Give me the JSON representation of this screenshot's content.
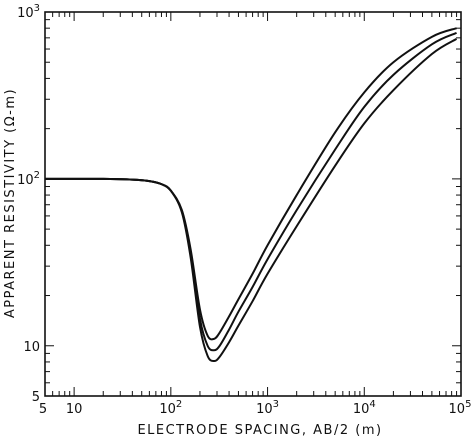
{
  "chart_data": {
    "type": "line",
    "title": "",
    "xlabel": "ELECTRODE SPACING, AB/2 (m)",
    "ylabel": "APPARENT RESISTIVITY (Ω-m)",
    "xscale": "log",
    "yscale": "log",
    "xlim": [
      5,
      100000
    ],
    "ylim": [
      5,
      1000
    ],
    "grid": false,
    "legend": "none",
    "x_tick_labels": [
      {
        "value": 5,
        "label": "5"
      },
      {
        "value": 10,
        "label": "10"
      },
      {
        "value": 100,
        "label": "10",
        "exp": "2"
      },
      {
        "value": 1000,
        "label": "10",
        "exp": "3"
      },
      {
        "value": 10000,
        "label": "10",
        "exp": "4"
      },
      {
        "value": 100000,
        "label": "10",
        "exp": "5"
      }
    ],
    "y_tick_labels": [
      {
        "value": 5,
        "label": "5"
      },
      {
        "value": 10,
        "label": "10"
      },
      {
        "value": 100,
        "label": "10",
        "exp": "2"
      },
      {
        "value": 1000,
        "label": "10",
        "exp": "3"
      }
    ],
    "series": [
      {
        "x": [
          5,
          10,
          20,
          40,
          60,
          80,
          100,
          130,
          160,
          200,
          240,
          280,
          320,
          400,
          500,
          700,
          1000,
          2000,
          5000,
          10000,
          20000,
          50000,
          90000
        ],
        "y": [
          100,
          100,
          100,
          99,
          97,
          93,
          85,
          65,
          38,
          16.5,
          11.5,
          11,
          12,
          15,
          19,
          27,
          40,
          80,
          190,
          330,
          500,
          710,
          800
        ]
      },
      {
        "x": [
          5,
          10,
          20,
          40,
          60,
          80,
          100,
          130,
          160,
          200,
          240,
          280,
          320,
          400,
          500,
          700,
          1000,
          2000,
          5000,
          10000,
          20000,
          50000,
          90000
        ],
        "y": [
          100,
          100,
          100,
          99,
          97,
          93,
          85,
          64,
          36,
          14.5,
          10,
          9.4,
          10,
          12.5,
          16,
          22.5,
          33,
          65,
          150,
          270,
          420,
          640,
          750
        ]
      },
      {
        "x": [
          5,
          10,
          20,
          40,
          60,
          80,
          100,
          130,
          160,
          200,
          240,
          280,
          320,
          400,
          500,
          700,
          1000,
          2000,
          5000,
          10000,
          20000,
          50000,
          90000
        ],
        "y": [
          100,
          100,
          100,
          99,
          97,
          93,
          85,
          63,
          34,
          13,
          8.7,
          8.1,
          8.6,
          10.5,
          13.2,
          18.5,
          27,
          52,
          120,
          215,
          340,
          560,
          690
        ]
      }
    ]
  }
}
